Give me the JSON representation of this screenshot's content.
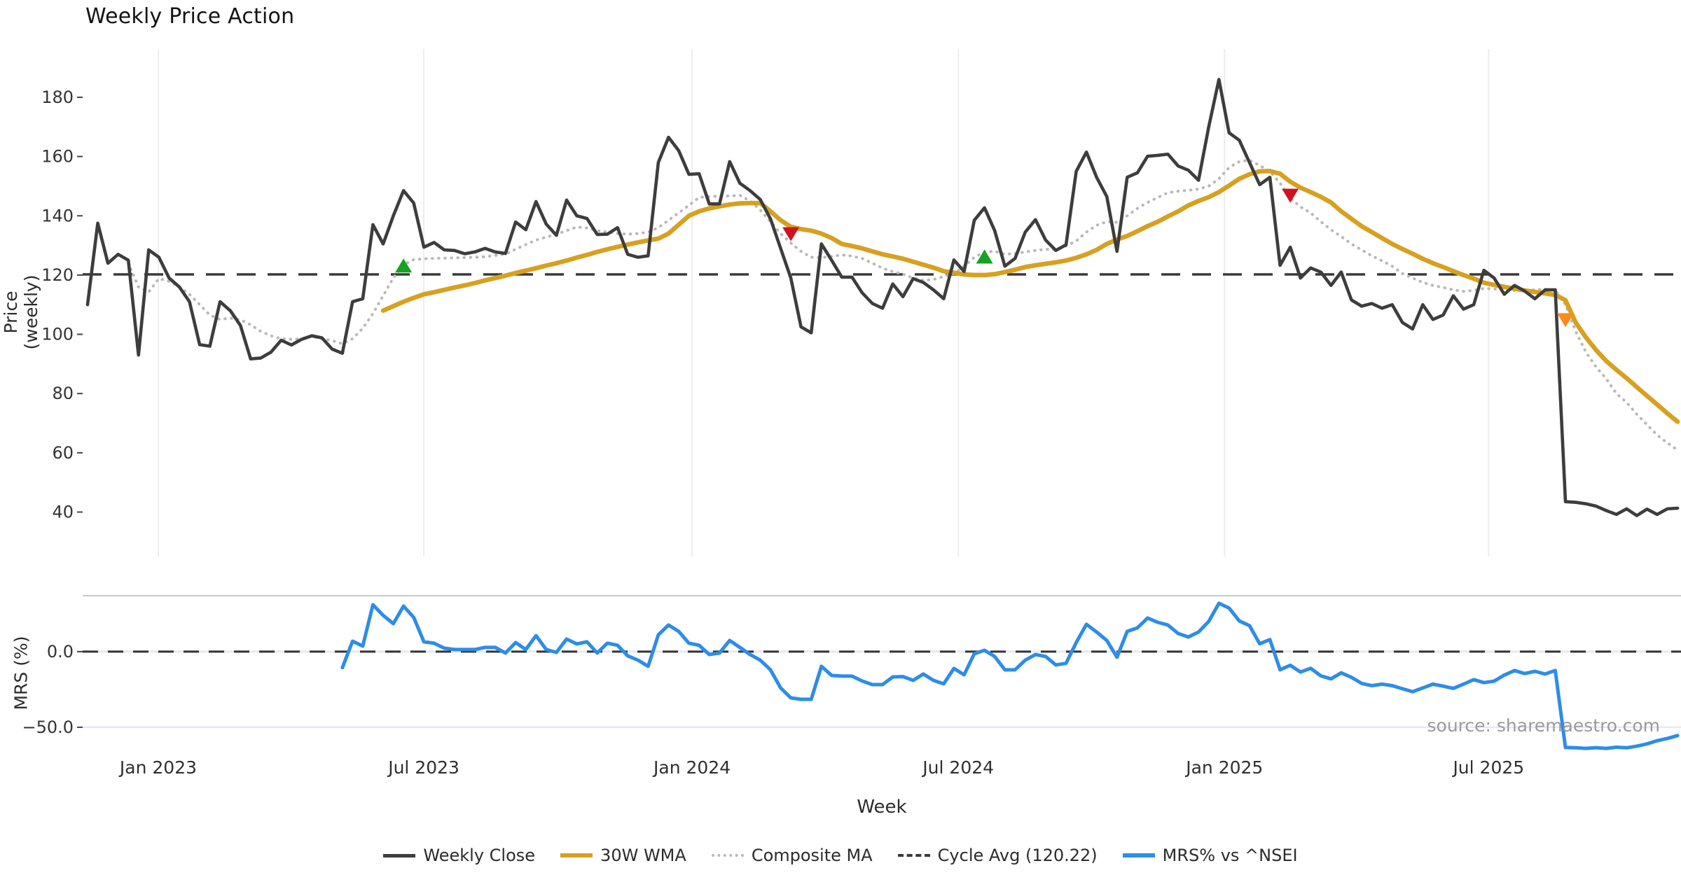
{
  "title": "Weekly Price Action",
  "source_note": "source: sharemaestro.com",
  "axes": {
    "price_label": "Price (weekly)",
    "mrs_label": "MRS (%)",
    "x_label": "Week"
  },
  "legend": [
    {
      "label": "Weekly Close",
      "series": "weekly_close",
      "color": "#3d3d3d",
      "style": "solid"
    },
    {
      "label": "30W WMA",
      "series": "wma30",
      "color": "#d7a021",
      "style": "solid"
    },
    {
      "label": "Composite MA",
      "series": "composite_ma",
      "color": "#b9b9b9",
      "style": "dotted"
    },
    {
      "label": "Cycle Avg (120.22)",
      "series": "cycle_avg",
      "color": "#3a3a3a",
      "style": "dashed"
    },
    {
      "label": "MRS% vs ^NSEI",
      "series": "mrs",
      "color": "#2d8de8",
      "style": "solid"
    }
  ],
  "colors": {
    "weekly_close": "#3d3d3d",
    "wma30": "#d7a021",
    "composite_ma": "#b9b9b9",
    "cycle_avg": "#3a3a3a",
    "mrs": "#2d8de8",
    "buy_marker": "#18a222",
    "sell_marker": "#cf1120",
    "event_marker": "#ff8c1a",
    "gridline": "#ededed",
    "mrs_gridline": "#e8e8f1",
    "panel_spine": "#c9c9c9",
    "tick_text": "#333333"
  },
  "chart_data": {
    "type": "line",
    "title": "Weekly Price Action",
    "x_unit": "week_index",
    "x_start_approx": "Nov 2022",
    "n_weeks": 157,
    "x_ticks": [
      {
        "index": 6.94,
        "label": "Jan 2023"
      },
      {
        "index": 32.99,
        "label": "Jul 2023"
      },
      {
        "index": 59.31,
        "label": "Jan 2024"
      },
      {
        "index": 85.43,
        "label": "Jul 2024"
      },
      {
        "index": 111.55,
        "label": "Jan 2025"
      },
      {
        "index": 137.46,
        "label": "Jul 2025"
      }
    ],
    "main_panel": {
      "ylabel": "Price (weekly)",
      "y_ticks": [
        40,
        60,
        80,
        100,
        120,
        140,
        160,
        180
      ],
      "ylim": [
        25,
        196.3
      ],
      "cycle_avg": 120.22,
      "series": [
        {
          "name": "weekly_close",
          "start_index": 0,
          "values": [
            110,
            137.5,
            124,
            127,
            125,
            93,
            128.5,
            126,
            119,
            116,
            111,
            96.5,
            96,
            111,
            108,
            103,
            91.7,
            92,
            94,
            98,
            96.4,
            98.3,
            99.5,
            98.8,
            95,
            93.6,
            111,
            112,
            137,
            130.5,
            140,
            148.5,
            144.3,
            129.4,
            131,
            128.5,
            128.3,
            127.2,
            127.8,
            129,
            127.8,
            127.3,
            137.9,
            135.3,
            144.8,
            137.2,
            133.4,
            145.3,
            140,
            139.1,
            133.7,
            133.8,
            136,
            127,
            126,
            126.5,
            158,
            166.5,
            162,
            154,
            154.2,
            144,
            144,
            158.3,
            151,
            148.5,
            145.5,
            139,
            129,
            119,
            102.5,
            100.5,
            130.5,
            125,
            119.3,
            119.3,
            114,
            110.4,
            108.8,
            117,
            112.7,
            118.8,
            117.5,
            115,
            112,
            125.1,
            121.2,
            138.5,
            142.7,
            135,
            123,
            125.6,
            134.5,
            138.7,
            131.8,
            128.3,
            130.2,
            155,
            161.5,
            153,
            146.5,
            128,
            153,
            154.5,
            160.1,
            160.4,
            160.8,
            156.8,
            155.4,
            152,
            170,
            186,
            168,
            165.5,
            158,
            150.5,
            153,
            123.3,
            129.4,
            119,
            122.4,
            121,
            116.5,
            121,
            111.6,
            109.5,
            110.4,
            108.8,
            110,
            104,
            101.8,
            110,
            105,
            106.5,
            113,
            108.5,
            110,
            121.6,
            119,
            113.5,
            116.5,
            114.6,
            112,
            115,
            115,
            43.5,
            43.3,
            42.8,
            42,
            40.5,
            39.2,
            41.1,
            38.8,
            41,
            39.2,
            41.1,
            41.3
          ]
        },
        {
          "name": "wma30",
          "start_index": 29,
          "values": [
            108,
            109.5,
            111,
            112.3,
            113.5,
            114.2,
            115,
            115.8,
            116.5,
            117.3,
            118.2,
            119,
            119.8,
            120.7,
            121.5,
            122.3,
            123.2,
            124,
            124.9,
            125.9,
            126.8,
            127.8,
            128.7,
            129.5,
            130.3,
            131,
            131.7,
            132.3,
            134,
            137,
            140,
            141.5,
            142.5,
            143.2,
            143.8,
            144.2,
            144.3,
            144.3,
            141.5,
            138.5,
            136.3,
            135.5,
            135,
            134,
            132.5,
            130.5,
            129.8,
            129,
            128,
            127,
            126.3,
            125.5,
            124.5,
            123.5,
            122.5,
            121.3,
            120.8,
            120.2,
            120,
            120,
            120.3,
            121,
            121.8,
            122.7,
            123.3,
            123.8,
            124.3,
            124.9,
            125.8,
            127,
            128.5,
            130.5,
            132,
            133.2,
            134.8,
            136.5,
            138,
            139.8,
            141.5,
            143.5,
            145,
            146.3,
            148,
            150.2,
            152.5,
            154,
            155,
            155.1,
            154.2,
            151.5,
            149.5,
            148,
            146.4,
            144.5,
            141.5,
            139,
            136.5,
            134.5,
            132.5,
            130.5,
            128.8,
            127.2,
            125.5,
            124,
            122.7,
            121.3,
            120,
            118.8,
            117.4,
            116.7,
            116,
            115.4,
            114.8,
            114.3,
            113.8,
            113.3,
            111.5,
            104,
            99,
            94.7,
            91,
            88,
            85.2,
            82.2,
            79.2,
            76.3,
            73.3,
            70.5
          ]
        },
        {
          "name": "composite_ma",
          "start_index": 4,
          "values": [
            124,
            116,
            114.3,
            118.8,
            117.9,
            116,
            113.5,
            110,
            106.5,
            105,
            105.5,
            104.9,
            103.2,
            101,
            99.5,
            98.5,
            98.3,
            98.5,
            99.3,
            98.5,
            97.9,
            96.8,
            98.5,
            102,
            107,
            113,
            119,
            123.5,
            125.2,
            125.5,
            125.6,
            125.7,
            125.8,
            125.9,
            126,
            126.2,
            126.6,
            127.1,
            128.7,
            130.3,
            131.8,
            132.8,
            133.8,
            135,
            136.2,
            135.9,
            135,
            134.5,
            134,
            133.8,
            134,
            134.5,
            136,
            138.5,
            141,
            143.5,
            146.2,
            146.5,
            146.6,
            146.7,
            146.9,
            145,
            142,
            138,
            134,
            130.8,
            128,
            126,
            125.9,
            126.3,
            126.8,
            126.4,
            125.6,
            124,
            122.3,
            121.2,
            120.3,
            119,
            118.2,
            118.5,
            119.5,
            120.5,
            123,
            126,
            127.8,
            128,
            127,
            127.3,
            127.8,
            128.3,
            128.7,
            128.7,
            129.8,
            131.5,
            134.5,
            136.8,
            138,
            137.8,
            140,
            142.5,
            144.5,
            146.2,
            147.8,
            148.3,
            148.6,
            149,
            150,
            152.5,
            156.3,
            158.3,
            158.8,
            157,
            155,
            151,
            146,
            143,
            141,
            138,
            135.3,
            133,
            130.5,
            128.5,
            126.5,
            124.8,
            123,
            120.5,
            119,
            117.5,
            116.5,
            115.8,
            115,
            114.5,
            114.8,
            115.5,
            115.3,
            115,
            114.8,
            114.9,
            115,
            115.2,
            115,
            110,
            101,
            94,
            89,
            85,
            80,
            77,
            73,
            69.5,
            66,
            63.3,
            61
          ]
        }
      ],
      "markers": {
        "buy": [
          {
            "index": 31,
            "value": 123
          },
          {
            "index": 88,
            "value": 126
          }
        ],
        "sell": [
          {
            "index": 69,
            "value": 134
          },
          {
            "index": 118,
            "value": 147
          }
        ],
        "event": [
          {
            "index": 145,
            "value": 105
          }
        ]
      }
    },
    "mrs_panel": {
      "ylabel": "MRS (%)",
      "y_ticks": [
        {
          "value": 0,
          "label": "0.0"
        },
        {
          "value": -50,
          "label": "−50.0"
        }
      ],
      "ylim": [
        -66.7,
        37
      ],
      "zero_line": 0,
      "series": [
        {
          "name": "mrs",
          "start_index": 25,
          "values": [
            -10.6,
            6.9,
            3.7,
            31,
            24,
            18.5,
            30.1,
            22.7,
            6.5,
            5.6,
            2.3,
            1.4,
            1.4,
            1.4,
            2.8,
            2.8,
            -0.9,
            6,
            1.4,
            10.6,
            1.4,
            -0.5,
            8.3,
            5.1,
            6.5,
            -0.9,
            5.6,
            4.2,
            -2.8,
            -5.6,
            -9.7,
            11.1,
            17.6,
            13.4,
            5.6,
            4.2,
            -1.9,
            -0.9,
            7.4,
            2.8,
            -1.9,
            -5.6,
            -12,
            -24,
            -30.6,
            -31.5,
            -31.5,
            -9.7,
            -15.7,
            -16.2,
            -16.2,
            -19.4,
            -21.8,
            -21.8,
            -16.7,
            -16.5,
            -19,
            -14.8,
            -19,
            -21.3,
            -11.1,
            -15.3,
            -1.4,
            0.9,
            -3.2,
            -12,
            -12,
            -5.6,
            -1.9,
            -3.2,
            -8.8,
            -7.7,
            6,
            18.1,
            13,
            7.4,
            -3.7,
            13.4,
            15.7,
            22.2,
            19.4,
            17.6,
            12,
            9.7,
            13,
            20,
            32,
            28.8,
            20.3,
            17.2,
            5.2,
            8,
            -12,
            -9,
            -13.5,
            -11,
            -16,
            -18,
            -14,
            -17,
            -21,
            -22.5,
            -21.5,
            -22.5,
            -24.5,
            -26.5,
            -24,
            -21.5,
            -22.8,
            -24.3,
            -21.5,
            -18.5,
            -20.5,
            -19.5,
            -15.5,
            -12.5,
            -14.5,
            -13,
            -14.8,
            -12.5,
            -63.4,
            -63.6,
            -64,
            -63.5,
            -64,
            -63.2,
            -63.6,
            -62.5,
            -61,
            -58.9,
            -57.4,
            -55.5
          ]
        }
      ]
    }
  }
}
